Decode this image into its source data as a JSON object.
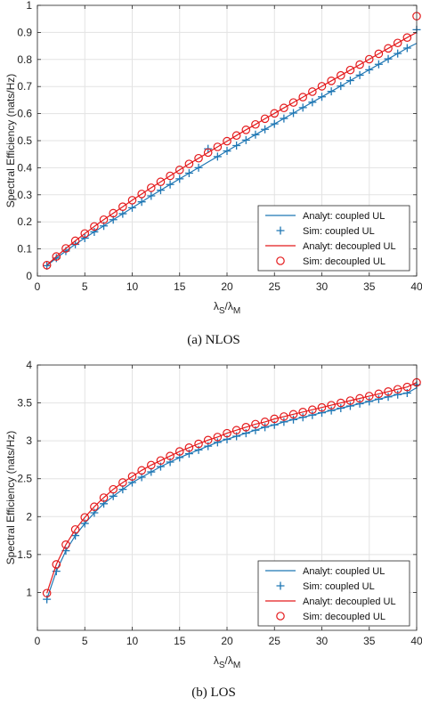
{
  "panels": [
    {
      "caption": "(a)  NLOS",
      "chart_data": {
        "type": "line",
        "title": "",
        "xlabel": "λS/λM",
        "ylabel": "Spectral Efficiency (nats/Hz)",
        "xlim": [
          0,
          40
        ],
        "ylim": [
          0,
          1
        ],
        "x_ticks": [
          0,
          5,
          10,
          15,
          20,
          25,
          30,
          35,
          40
        ],
        "y_ticks": [
          0,
          0.1,
          0.2,
          0.3,
          0.4,
          0.5,
          0.6,
          0.7,
          0.8,
          0.9,
          1
        ],
        "y_tick_labels": [
          "0",
          "0.1",
          "0.2",
          "0.3",
          "0.4",
          "0.5",
          "0.6",
          "0.7",
          "0.8",
          "0.9",
          "1"
        ],
        "grid": true,
        "legend_position": "bottom-right",
        "x": [
          1,
          2,
          3,
          4,
          5,
          6,
          7,
          8,
          9,
          10,
          11,
          12,
          13,
          14,
          15,
          16,
          17,
          18,
          19,
          20,
          21,
          22,
          23,
          24,
          25,
          26,
          27,
          28,
          29,
          30,
          31,
          32,
          33,
          34,
          35,
          36,
          37,
          38,
          39,
          40
        ],
        "series": [
          {
            "name": "Analyt: coupled UL",
            "style": "line",
            "color": "#1f77b4",
            "values": [
              0.038,
              0.066,
              0.092,
              0.117,
              0.14,
              0.163,
              0.185,
              0.208,
              0.23,
              0.252,
              0.274,
              0.296,
              0.317,
              0.338,
              0.359,
              0.38,
              0.4,
              0.421,
              0.441,
              0.462,
              0.482,
              0.502,
              0.522,
              0.542,
              0.562,
              0.582,
              0.602,
              0.622,
              0.642,
              0.662,
              0.682,
              0.702,
              0.722,
              0.742,
              0.762,
              0.782,
              0.802,
              0.822,
              0.842,
              0.86
            ]
          },
          {
            "name": "Sim: coupled UL",
            "style": "plus",
            "color": "#1f77b4",
            "values": [
              0.038,
              0.066,
              0.092,
              0.117,
              0.14,
              0.163,
              0.185,
              0.208,
              0.23,
              0.252,
              0.274,
              0.296,
              0.317,
              0.338,
              0.359,
              0.38,
              0.4,
              0.47,
              0.441,
              0.462,
              0.482,
              0.502,
              0.522,
              0.542,
              0.562,
              0.582,
              0.602,
              0.622,
              0.642,
              0.662,
              0.682,
              0.702,
              0.722,
              0.742,
              0.762,
              0.782,
              0.802,
              0.822,
              0.842,
              0.91
            ]
          },
          {
            "name": "Analyt: decoupled UL",
            "style": "line",
            "color": "#e41a1c",
            "values": [
              0.04,
              0.072,
              0.102,
              0.13,
              0.157,
              0.183,
              0.208,
              0.232,
              0.256,
              0.28,
              0.303,
              0.326,
              0.348,
              0.37,
              0.392,
              0.414,
              0.435,
              0.456,
              0.477,
              0.498,
              0.519,
              0.54,
              0.56,
              0.581,
              0.601,
              0.621,
              0.641,
              0.661,
              0.681,
              0.701,
              0.721,
              0.741,
              0.761,
              0.781,
              0.801,
              0.821,
              0.841,
              0.861,
              0.881,
              0.9
            ]
          },
          {
            "name": "Sim: decoupled UL",
            "style": "circle",
            "color": "#e41a1c",
            "values": [
              0.04,
              0.072,
              0.102,
              0.13,
              0.157,
              0.183,
              0.208,
              0.232,
              0.256,
              0.28,
              0.303,
              0.326,
              0.348,
              0.37,
              0.392,
              0.414,
              0.435,
              0.456,
              0.477,
              0.498,
              0.519,
              0.54,
              0.56,
              0.581,
              0.601,
              0.621,
              0.641,
              0.661,
              0.681,
              0.701,
              0.721,
              0.741,
              0.761,
              0.781,
              0.801,
              0.821,
              0.841,
              0.861,
              0.881,
              0.96
            ]
          }
        ]
      }
    },
    {
      "caption": "(b)  LOS",
      "chart_data": {
        "type": "line",
        "title": "",
        "xlabel": "λS/λM",
        "ylabel": "Spectral Efficiency (nats/Hz)",
        "xlim": [
          0,
          40
        ],
        "ylim": [
          0.5,
          4
        ],
        "x_ticks": [
          0,
          5,
          10,
          15,
          20,
          25,
          30,
          35,
          40
        ],
        "y_ticks": [
          1,
          1.5,
          2,
          2.5,
          3,
          3.5,
          4
        ],
        "y_tick_labels": [
          "1",
          "1.5",
          "2",
          "2.5",
          "3",
          "3.5",
          "4"
        ],
        "grid": true,
        "legend_position": "bottom-right",
        "x": [
          1,
          2,
          3,
          4,
          5,
          6,
          7,
          8,
          9,
          10,
          11,
          12,
          13,
          14,
          15,
          16,
          17,
          18,
          19,
          20,
          21,
          22,
          23,
          24,
          25,
          26,
          27,
          28,
          29,
          30,
          31,
          32,
          33,
          34,
          35,
          36,
          37,
          38,
          39,
          40
        ],
        "series": [
          {
            "name": "Analyt: coupled UL",
            "style": "line",
            "color": "#1f77b4",
            "values": [
              0.91,
              1.28,
              1.55,
              1.75,
              1.91,
              2.05,
              2.17,
              2.27,
              2.36,
              2.45,
              2.52,
              2.59,
              2.66,
              2.72,
              2.78,
              2.83,
              2.88,
              2.93,
              2.98,
              3.02,
              3.06,
              3.1,
              3.14,
              3.18,
              3.21,
              3.25,
              3.28,
              3.31,
              3.34,
              3.37,
              3.4,
              3.43,
              3.46,
              3.49,
              3.52,
              3.55,
              3.58,
              3.61,
              3.63,
              3.7
            ]
          },
          {
            "name": "Sim: coupled UL",
            "style": "plus",
            "color": "#1f77b4",
            "values": [
              0.91,
              1.28,
              1.55,
              1.75,
              1.91,
              2.05,
              2.17,
              2.27,
              2.36,
              2.45,
              2.52,
              2.59,
              2.66,
              2.72,
              2.78,
              2.83,
              2.88,
              2.93,
              2.98,
              3.02,
              3.06,
              3.1,
              3.14,
              3.18,
              3.21,
              3.25,
              3.28,
              3.31,
              3.34,
              3.37,
              3.4,
              3.43,
              3.46,
              3.49,
              3.52,
              3.55,
              3.58,
              3.61,
              3.63,
              3.74
            ]
          },
          {
            "name": "Analyt: decoupled UL",
            "style": "line",
            "color": "#e41a1c",
            "values": [
              0.99,
              1.37,
              1.63,
              1.83,
              1.99,
              2.13,
              2.25,
              2.36,
              2.45,
              2.53,
              2.61,
              2.68,
              2.74,
              2.8,
              2.86,
              2.91,
              2.96,
              3.01,
              3.05,
              3.1,
              3.14,
              3.18,
              3.22,
              3.25,
              3.29,
              3.32,
              3.35,
              3.38,
              3.41,
              3.44,
              3.47,
              3.5,
              3.53,
              3.56,
              3.59,
              3.62,
              3.65,
              3.68,
              3.71,
              3.77
            ]
          },
          {
            "name": "Sim: decoupled UL",
            "style": "circle",
            "color": "#e41a1c",
            "values": [
              0.99,
              1.37,
              1.63,
              1.83,
              1.99,
              2.13,
              2.25,
              2.36,
              2.45,
              2.53,
              2.61,
              2.68,
              2.74,
              2.8,
              2.86,
              2.91,
              2.96,
              3.01,
              3.05,
              3.1,
              3.14,
              3.18,
              3.22,
              3.25,
              3.29,
              3.32,
              3.35,
              3.38,
              3.41,
              3.44,
              3.47,
              3.5,
              3.53,
              3.56,
              3.59,
              3.62,
              3.65,
              3.68,
              3.71,
              3.77
            ]
          }
        ]
      }
    }
  ]
}
